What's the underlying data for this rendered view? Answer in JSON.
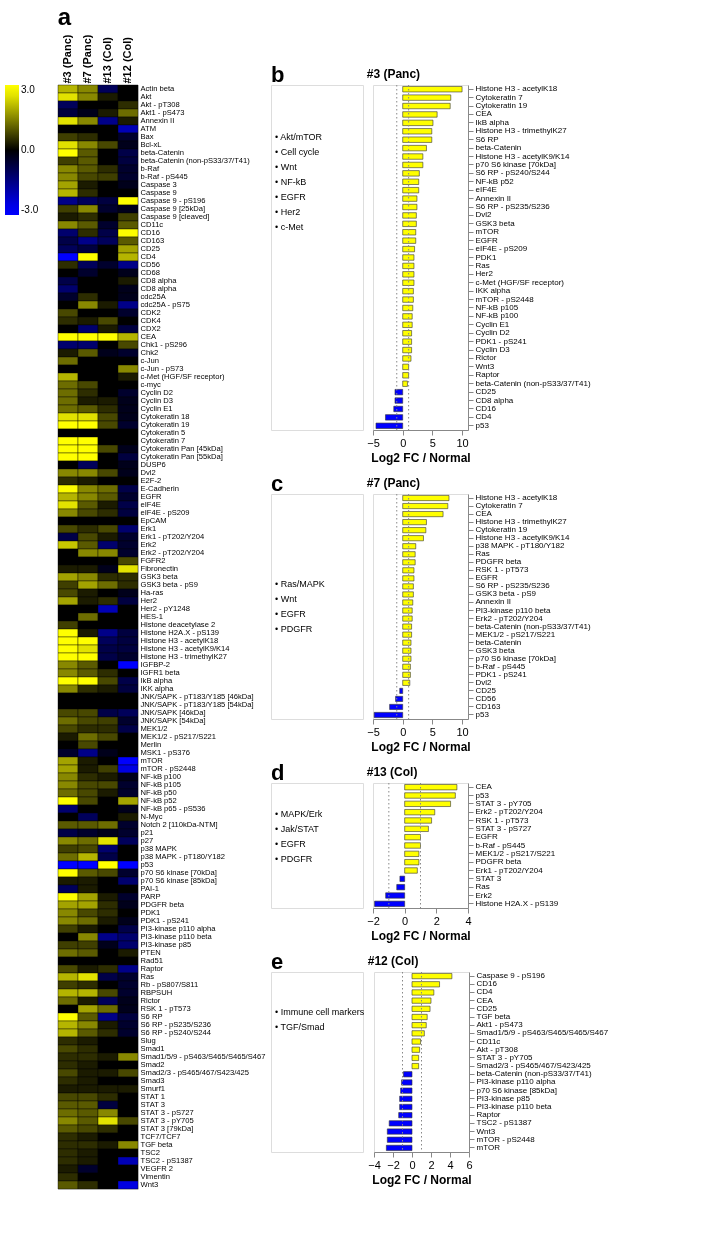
{
  "chart_data": [
    {
      "type": "heatmap",
      "annotations": [
        "a"
      ],
      "categories": [
        "#3 (Panc)",
        "#7 (Panc)",
        "#13 (Col)",
        "#12 (Col)"
      ],
      "y_categories": [
        "Actin beta",
        "Akt",
        "Akt - pT308",
        "Akt1 - pS473",
        "Annexin II",
        "ATM",
        "Bax",
        "Bcl-xL",
        "beta-Catenin",
        "beta-Catenin (non-pS33/37/T41)",
        "b-Raf",
        "b-Raf - pS445",
        "Caspase 3",
        "Caspase 9",
        "Caspase 9 - pS196",
        "Caspase 9 [25kDa]",
        "Caspase 9 [cleaved]",
        "CD11c",
        "CD16",
        "CD163",
        "CD25",
        "CD4",
        "CD56",
        "CD68",
        "CD8 alpha",
        "CD8 alpha",
        "cdc25A",
        "cdc25A - pS75",
        "CDK2",
        "CDK4",
        "CDX2",
        "CEA",
        "Chk1 - pS296",
        "Chk2",
        "c-Jun",
        "c-Jun - pS73",
        "c-Met (HGF/SF receptor)",
        "c-myc",
        "Cyclin D2",
        "Cyclin D3",
        "Cyclin E1",
        "Cytokeratin 18",
        "Cytokeratin 19",
        "Cytokeratin 5",
        "Cytokeratin 7",
        "Cytokeratin Pan [45kDa]",
        "Cytokeratin Pan [55kDa]",
        "DUSP6",
        "Dvl2",
        "E2F-2",
        "E-Cadherin",
        "EGFR",
        "eIF4E",
        "eIF4E - pS209",
        "EpCAM",
        "Erk1",
        "Erk1 - pT202/Y204",
        "Erk2",
        "Erk2 - pT202/Y204",
        "FGFR2",
        "Fibronectin",
        "GSK3 beta",
        "GSK3 beta - pS9",
        "Ha-ras",
        "Her2",
        "Her2 - pY1248",
        "HES-1",
        "Histone deacetylase 2",
        "Histone H2A.X - pS139",
        "Histone H3 - acetylK18",
        "Histone H3 - acetylK9/K14",
        "Histone H3 - trimethylK27",
        "IGFBP-2",
        "IGFR1 beta",
        "IkB alpha",
        "IKK alpha",
        "JNK/SAPK - pT183/Y185 [46kDa]",
        "JNK/SAPK - pT183/Y185 [54kDa]",
        "JNK/SAPK [46kDa]",
        "JNK/SAPK [54kDa]",
        "MEK1/2",
        "MEK1/2 - pS217/S221",
        "Merlin",
        "MSK1 - pS376",
        "mTOR",
        "mTOR - pS2448",
        "NF-kB p100",
        "NF-kB p105",
        "NF-kB p50",
        "NF-kB p52",
        "NF-kB p65 - pS536",
        "N-Myc",
        "Notch 2 [110kDa-NTM]",
        "p21",
        "p27",
        "p38 MAPK",
        "p38 MAPK - pT180/Y182",
        "p53",
        "p70 S6 kinase [70kDa]",
        "p70 S6 kinase [85kDa]",
        "PAI-1",
        "PARP",
        "PDGFR beta",
        "PDK1",
        "PDK1 - pS241",
        "PI3-kinase p110 alpha",
        "PI3-kinase p110 beta",
        "PI3-kinase p85",
        "PTEN",
        "Rad51",
        "Raptor",
        "Ras",
        "Rb - pS807/S811",
        "RBPSUH",
        "Rictor",
        "RSK 1 - pT573",
        "S6 RP",
        "S6 RP - pS235/S236",
        "S6 RP - pS240/S244",
        "Slug",
        "Smad1",
        "Smad1/5/9 - pS463/S465/S465/S467",
        "Smad2",
        "Smad2/3 - pS465/467/S423/425",
        "Smad3",
        "Smurf1",
        "STAT 1",
        "STAT 3",
        "STAT 3 - pS727",
        "STAT 3 - pY705",
        "STAT 3 [79kDa]",
        "TCF7/TCF7",
        "TGF beta",
        "TSC2",
        "TSC2 - pS1387",
        "VEGFR 2",
        "Vimentin",
        "Wnt3"
      ],
      "cells": [
        [
          2,
          1.5,
          -1,
          0
        ],
        [
          2.5,
          1.5,
          0.3,
          0
        ],
        [
          -1,
          0,
          0,
          0.5
        ],
        [
          -0.7,
          -0.3,
          0.3,
          1.2
        ],
        [
          2.5,
          1.5,
          -1.5,
          0.3
        ],
        [
          0,
          0,
          0,
          -2
        ],
        [
          0.7,
          0.5,
          0,
          -0.5
        ],
        [
          2.5,
          1.5,
          0.8,
          -0.3
        ],
        [
          3,
          1,
          0,
          -0.8
        ],
        [
          0.7,
          1,
          0,
          -0.7
        ],
        [
          1.5,
          1,
          0.5,
          -0.5
        ],
        [
          1.5,
          0.8,
          0.7,
          -0.5
        ],
        [
          1.8,
          0.3,
          0,
          -0.3
        ],
        [
          2,
          0.5,
          0,
          0
        ],
        [
          -1.5,
          -1,
          -0.7,
          3
        ],
        [
          0.7,
          1.5,
          -0.5,
          -0.3
        ],
        [
          0.3,
          0.5,
          0,
          0.7
        ],
        [
          1.5,
          1,
          -0.5,
          1
        ],
        [
          -1.2,
          0.5,
          -0.8,
          2.8
        ],
        [
          -0.8,
          -1.5,
          -1,
          1
        ],
        [
          -1,
          -0.7,
          0,
          1.8
        ],
        [
          -3,
          3,
          0,
          2
        ],
        [
          0.5,
          -1,
          -0.5,
          -1.5
        ],
        [
          0,
          -0.5,
          0,
          -0.3
        ],
        [
          -0.8,
          0,
          0,
          0.3
        ],
        [
          -1.2,
          0,
          0,
          -0.3
        ],
        [
          -0.5,
          0.5,
          0,
          -0.3
        ],
        [
          0,
          1.5,
          0.3,
          -1.5
        ],
        [
          0.8,
          0,
          0,
          -0.5
        ],
        [
          0.5,
          0.3,
          0.8,
          0
        ],
        [
          0,
          -1.2,
          0.3,
          -0.7
        ],
        [
          3,
          3,
          3,
          2
        ],
        [
          -1.2,
          -1.2,
          0,
          0.8
        ],
        [
          0.3,
          1,
          -0.3,
          -0.5
        ],
        [
          1.2,
          0,
          0,
          0
        ],
        [
          0,
          0,
          0,
          1.5
        ],
        [
          2,
          0,
          0,
          0.3
        ],
        [
          1.2,
          0.8,
          0,
          0
        ],
        [
          1.2,
          0.5,
          0,
          -0.5
        ],
        [
          1.2,
          0.3,
          0.3,
          -0.3
        ],
        [
          1.2,
          1,
          0.5,
          -0.3
        ],
        [
          2.5,
          2.5,
          0.8,
          -0.3
        ],
        [
          3,
          3,
          0.8,
          -0.5
        ],
        [
          0,
          0,
          0,
          0
        ],
        [
          3,
          3,
          0,
          0
        ],
        [
          3,
          3,
          0.8,
          -0.3
        ],
        [
          3,
          3,
          0,
          -0.7
        ],
        [
          0,
          -1,
          0,
          -0.3
        ],
        [
          1.5,
          1.5,
          0.8,
          -0.3
        ],
        [
          0.5,
          0.3,
          0,
          0
        ],
        [
          2.8,
          1.5,
          1.2,
          -0.8
        ],
        [
          2,
          1.5,
          1,
          -0.5
        ],
        [
          2.5,
          1,
          0.3,
          -0.8
        ],
        [
          1.5,
          0.8,
          0.5,
          -0.7
        ],
        [
          0,
          0,
          0,
          0
        ],
        [
          0.8,
          0.5,
          0.8,
          -1.2
        ],
        [
          -0.8,
          0.8,
          0.3,
          -0.5
        ],
        [
          2.2,
          1,
          -1.2,
          -0.5
        ],
        [
          0,
          1.5,
          1.5,
          -0.5
        ],
        [
          0,
          0,
          0,
          0.8
        ],
        [
          0.3,
          0.3,
          -0.3,
          2.5
        ],
        [
          1.8,
          1.5,
          0.5,
          0.5
        ],
        [
          0.7,
          1.8,
          1.2,
          0.5
        ],
        [
          0.8,
          0.3,
          0,
          -0.3
        ],
        [
          1.8,
          0.3,
          0.5,
          -0.7
        ],
        [
          0,
          0,
          -2,
          0
        ],
        [
          0,
          1.2,
          0,
          0
        ],
        [
          0.7,
          0,
          0,
          0
        ],
        [
          3,
          0.3,
          -1.5,
          -0.7
        ],
        [
          3,
          3,
          -1,
          -0.7
        ],
        [
          3,
          2.5,
          -0.8,
          -0.7
        ],
        [
          3,
          3,
          -0.8,
          -0.5
        ],
        [
          1.5,
          1,
          0,
          -2.8
        ],
        [
          1.5,
          1,
          0.5,
          0
        ],
        [
          3,
          3,
          0.8,
          -0.8
        ],
        [
          1.5,
          0.5,
          0.3,
          -0.7
        ],
        [
          0,
          0,
          0,
          0
        ],
        [
          0,
          0,
          0,
          0
        ],
        [
          0.8,
          0.8,
          -0.8,
          -1
        ],
        [
          1.2,
          0.8,
          0.7,
          -0.5
        ],
        [
          0.8,
          0.5,
          0.5,
          -0.8
        ],
        [
          0.3,
          1.2,
          0.8,
          0
        ],
        [
          0,
          0.8,
          0,
          0
        ],
        [
          -0.5,
          -1.5,
          -0.3,
          0
        ],
        [
          1.8,
          0.3,
          0,
          -2.8
        ],
        [
          1.8,
          0.3,
          0.7,
          -2.5
        ],
        [
          1.5,
          0.5,
          0.3,
          -0.3
        ],
        [
          1.5,
          0.8,
          0.8,
          -0.5
        ],
        [
          1.2,
          0.8,
          0.3,
          -0.5
        ],
        [
          3,
          0.8,
          0,
          1.8
        ],
        [
          -1.2,
          0,
          0,
          -0.3
        ],
        [
          0,
          -1,
          0,
          0.3
        ],
        [
          1,
          1,
          1.2,
          -0.5
        ],
        [
          -0.8,
          -0.5,
          -0.3,
          -0.5
        ],
        [
          1.5,
          1.2,
          2.5,
          -1
        ],
        [
          0.7,
          0.8,
          -1.2,
          0
        ],
        [
          1.2,
          2,
          -0.8,
          0
        ],
        [
          -3,
          -3,
          3,
          -3
        ],
        [
          3,
          1,
          0.8,
          -0.5
        ],
        [
          0.3,
          0.3,
          0,
          -1.2
        ],
        [
          -1,
          0.3,
          0,
          0
        ],
        [
          3,
          1.8,
          0.3,
          -0.5
        ],
        [
          1.8,
          1.8,
          0.5,
          -0.3
        ],
        [
          1.5,
          0.8,
          0.5,
          0
        ],
        [
          1.5,
          1.2,
          0.3,
          -0.3
        ],
        [
          0.7,
          0.3,
          0,
          -0.8
        ],
        [
          0,
          1.5,
          -1.5,
          -1.2
        ],
        [
          0.7,
          0.7,
          -0.3,
          -1.2
        ],
        [
          1.2,
          1,
          0,
          0.3
        ],
        [
          0,
          0,
          0,
          0
        ],
        [
          0.8,
          0.3,
          0.5,
          -1.5
        ],
        [
          2,
          2.5,
          -0.8,
          -0.5
        ],
        [
          0.7,
          0.5,
          0,
          -0.5
        ],
        [
          2,
          2,
          0.8,
          -0.5
        ],
        [
          1.2,
          0.3,
          -1,
          -0.3
        ],
        [
          0,
          1.8,
          1.2,
          -0.3
        ],
        [
          3,
          1,
          -1.5,
          -0.7
        ],
        [
          2,
          1.5,
          0.3,
          -0.5
        ],
        [
          2,
          1,
          0.5,
          -0.5
        ],
        [
          0.5,
          0.3,
          0,
          0
        ],
        [
          0.8,
          0.5,
          0,
          0
        ],
        [
          0.5,
          0.5,
          0.3,
          1.5
        ],
        [
          0.5,
          0.3,
          0,
          0
        ],
        [
          0.8,
          0.3,
          0.3,
          0.8
        ],
        [
          0.5,
          0.3,
          0,
          0
        ],
        [
          0.3,
          0.3,
          0.3,
          0.3
        ],
        [
          0.8,
          0.8,
          0.5,
          0
        ],
        [
          1,
          1,
          -0.7,
          0
        ],
        [
          1.2,
          1,
          1.5,
          0
        ],
        [
          1.5,
          1,
          2.5,
          0.8
        ],
        [
          1,
          0.8,
          0.5,
          0
        ],
        [
          0.5,
          0.3,
          0,
          0
        ],
        [
          0.5,
          0.5,
          0.3,
          1.5
        ],
        [
          0.5,
          0.3,
          0,
          0
        ],
        [
          0.5,
          0.3,
          0,
          -2
        ],
        [
          0.3,
          -0.5,
          0,
          0
        ],
        [
          0.5,
          0,
          0,
          0
        ],
        [
          1,
          0.5,
          0,
          -2.5
        ]
      ],
      "colors": [
        "#0000ff",
        "#000000",
        "#ffff00"
      ],
      "clim": [
        -3,
        3
      ],
      "cticks": [
        {
          "value": 3,
          "label": "3.0"
        },
        {
          "value": 0,
          "label": "0.0"
        },
        {
          "value": -3,
          "label": "-3.0"
        }
      ]
    },
    {
      "type": "bar",
      "orientation": "horizontal",
      "title": "#3 (Panc)",
      "xlabel": "Log2 FC / Normal",
      "annotations": [
        "b",
        "• Akt/mTOR",
        "• Cell cycle",
        "• Wnt",
        "• NF-kB",
        "• EGFR",
        "• Her2",
        "• c-Met"
      ],
      "categories": [
        "Histone H3 - acetylK18",
        "Cytokeratin 7",
        "Cytokeratin 19",
        "CEA",
        "IkB alpha",
        "Histone H3 - trimethylK27",
        "S6 RP",
        "beta-Catenin",
        "Histone H3 - acetylK9/K14",
        "p70 S6 kinase [70kDa]",
        "S6 RP - pS240/S244",
        "NF-kB p52",
        "eIF4E",
        "Annexin II",
        "S6 RP - pS235/S236",
        "Dvl2",
        "GSK3 beta",
        "mTOR",
        "EGFR",
        "eIF4E - pS209",
        "PDK1",
        "Ras",
        "Her2",
        "c-Met (HGF/SF receptor)",
        "IKK alpha",
        "mTOR - pS2448",
        "NF-kB p105",
        "NF-kB p100",
        "Cyclin E1",
        "Cyclin D2",
        "PDK1 - pS241",
        "Cyclin D3",
        "Rictor",
        "Wnt3",
        "Raptor",
        "beta-Catenin (non-pS33/37/T41)",
        "CD25",
        "CD8 alpha",
        "CD16",
        "CD4",
        "p53"
      ],
      "values": [
        10,
        8.1,
        8.0,
        5.8,
        5.1,
        4.9,
        4.9,
        4.0,
        3.4,
        3.4,
        2.8,
        2.7,
        2.7,
        2.4,
        2.4,
        2.3,
        2.3,
        2.2,
        2.2,
        2.0,
        1.9,
        1.9,
        1.9,
        1.9,
        1.8,
        1.8,
        1.7,
        1.6,
        1.6,
        1.5,
        1.5,
        1.5,
        1.4,
        1.0,
        1.0,
        0.8,
        -1.3,
        -1.3,
        -1.5,
        -2.9,
        -4.5
      ],
      "colors": [
        "#ffff00",
        "#ffff00",
        "#ffff00",
        "#ffff00",
        "#ffff00",
        "#ffff00",
        "#ffff00",
        "#ffff00",
        "#ffff00",
        "#ffff00",
        "#ffff00",
        "#ffff00",
        "#ffff00",
        "#ffff00",
        "#ffff00",
        "#ffff00",
        "#ffff00",
        "#ffff00",
        "#ffff00",
        "#ffff00",
        "#ffff00",
        "#ffff00",
        "#ffff00",
        "#ffff00",
        "#ffff00",
        "#ffff00",
        "#ffff00",
        "#ffff00",
        "#ffff00",
        "#ffff00",
        "#ffff00",
        "#ffff00",
        "#ffff00",
        "#ffff00",
        "#ffff00",
        "#ffff00",
        "#0000ff",
        "#0000ff",
        "#0000ff",
        "#0000ff",
        "#0000ff"
      ],
      "xlim": [
        -5,
        11
      ],
      "xticks": [
        -5,
        0,
        5,
        10
      ],
      "ref_lines": [
        {
          "axis": "x",
          "value": -1,
          "color": "#888888",
          "line_style": "dotted"
        },
        {
          "axis": "x",
          "value": 1,
          "color": "#888888",
          "line_style": "dotted"
        }
      ]
    },
    {
      "type": "bar",
      "orientation": "horizontal",
      "title": "#7 (Panc)",
      "xlabel": "Log2 FC / Normal",
      "annotations": [
        "c",
        "• Ras/MAPK",
        "• Wnt",
        "• EGFR",
        "• PDGFR"
      ],
      "categories": [
        "Histone H3 - acetylK18",
        "Cytokeratin 7",
        "CEA",
        "Histone H3 - trimethylK27",
        "Cytokeratin 19",
        "Histone H3 - acetylK9/K14",
        "p38 MAPK - pT180/Y182",
        "Ras",
        "PDGFR beta",
        "RSK 1 - pT573",
        "EGFR",
        "S6 RP - pS235/S236",
        "GSK3 beta - pS9",
        "Annexin II",
        "PI3-kinase p110 beta",
        "Erk2 - pT202/Y204",
        "beta-Catenin (non-pS33/37/T41)",
        "MEK1/2 - pS217/S221",
        "beta-Catenin",
        "GSK3 beta",
        "p70 S6 kinase [70kDa]",
        "b-Raf - pS445",
        "PDK1 - pS241",
        "Dvl2",
        "CD25",
        "CD56",
        "CD163",
        "p53"
      ],
      "values": [
        7.8,
        7.6,
        6.8,
        4.0,
        3.9,
        3.5,
        2.2,
        2.1,
        2.1,
        1.9,
        1.9,
        1.8,
        1.8,
        1.7,
        1.6,
        1.6,
        1.5,
        1.5,
        1.4,
        1.4,
        1.4,
        1.3,
        1.3,
        1.2,
        -0.5,
        -1.2,
        -2.2,
        -4.8
      ],
      "colors": [
        "#ffff00",
        "#ffff00",
        "#ffff00",
        "#ffff00",
        "#ffff00",
        "#ffff00",
        "#ffff00",
        "#ffff00",
        "#ffff00",
        "#ffff00",
        "#ffff00",
        "#ffff00",
        "#ffff00",
        "#ffff00",
        "#ffff00",
        "#ffff00",
        "#ffff00",
        "#ffff00",
        "#ffff00",
        "#ffff00",
        "#ffff00",
        "#ffff00",
        "#ffff00",
        "#ffff00",
        "#0000ff",
        "#0000ff",
        "#0000ff",
        "#0000ff"
      ],
      "xlim": [
        -5,
        11
      ],
      "xticks": [
        -5,
        0,
        5,
        10
      ],
      "ref_lines": [
        {
          "axis": "x",
          "value": -1,
          "color": "#888888",
          "line_style": "dotted"
        },
        {
          "axis": "x",
          "value": 1,
          "color": "#888888",
          "line_style": "dotted"
        }
      ]
    },
    {
      "type": "bar",
      "orientation": "horizontal",
      "title": "#13 (Col)",
      "xlabel": "Log2 FC / Normal",
      "annotations": [
        "d",
        "• MAPK/Erk",
        "• Jak/STAT",
        "• EGFR",
        "• PDGFR"
      ],
      "categories": [
        "CEA",
        "p53",
        "STAT 3 - pY705",
        "Erk2 - pT202/Y204",
        "RSK 1 - pT573",
        "STAT 3 - pS727",
        "EGFR",
        "b-Raf - pS445",
        "MEK1/2 - pS217/S221",
        "PDGFR beta",
        "Erk1 - pT202/Y204",
        "STAT 3",
        "Ras",
        "Erk2",
        "Histone H2A.X - pS139"
      ],
      "values": [
        3.3,
        3.2,
        2.9,
        1.9,
        1.7,
        1.5,
        1.0,
        1.0,
        0.9,
        0.9,
        0.8,
        -0.3,
        -0.5,
        -1.2,
        -1.9
      ],
      "colors": [
        "#ffff00",
        "#ffff00",
        "#ffff00",
        "#ffff00",
        "#ffff00",
        "#ffff00",
        "#ffff00",
        "#ffff00",
        "#ffff00",
        "#ffff00",
        "#ffff00",
        "#0000ff",
        "#0000ff",
        "#0000ff",
        "#0000ff"
      ],
      "xlim": [
        -2,
        4
      ],
      "xticks": [
        -2,
        0,
        2,
        4
      ],
      "ref_lines": [
        {
          "axis": "x",
          "value": -1,
          "color": "#888888",
          "line_style": "dotted"
        },
        {
          "axis": "x",
          "value": 1,
          "color": "#888888",
          "line_style": "dotted"
        }
      ]
    },
    {
      "type": "bar",
      "orientation": "horizontal",
      "title": "#12 (Col)",
      "xlabel": "Log2 FC / Normal",
      "annotations": [
        "e",
        "• Immune cell markers",
        "• TGF/Smad"
      ],
      "categories": [
        "Caspase 9 - pS196",
        "CD16",
        "CD4",
        "CEA",
        "CD25",
        "TGF beta",
        "Akt1 - pS473",
        "Smad1/5/9 - pS463/S465/S465/S467",
        "CD11c",
        "Akt - pT308",
        "STAT 3 - pY705",
        "Smad2/3 - pS465/467/S423/425",
        "beta-Catenin (non-pS33/37/T41)",
        "PI3-kinase p110 alpha",
        "p70 S6 kinase [85kDa]",
        "PI3-kinase p85",
        "PI3-kinase p110 beta",
        "Raptor",
        "TSC2 - pS1387",
        "Wnt3",
        "mTOR - pS2448",
        "mTOR"
      ],
      "values": [
        4.2,
        2.9,
        2.3,
        2.0,
        1.9,
        1.6,
        1.5,
        1.3,
        0.9,
        0.8,
        0.7,
        0.7,
        -0.9,
        -1.1,
        -1.2,
        -1.3,
        -1.3,
        -1.4,
        -2.4,
        -2.6,
        -2.6,
        -2.7
      ],
      "colors": [
        "#ffff00",
        "#ffff00",
        "#ffff00",
        "#ffff00",
        "#ffff00",
        "#ffff00",
        "#ffff00",
        "#ffff00",
        "#ffff00",
        "#ffff00",
        "#ffff00",
        "#ffff00",
        "#0000ff",
        "#0000ff",
        "#0000ff",
        "#0000ff",
        "#0000ff",
        "#0000ff",
        "#0000ff",
        "#0000ff",
        "#0000ff",
        "#0000ff"
      ],
      "xlim": [
        -4,
        6
      ],
      "xticks": [
        -4,
        -2,
        0,
        2,
        4,
        6
      ],
      "ref_lines": [
        {
          "axis": "x",
          "value": -1,
          "color": "#888888",
          "line_style": "dotted"
        },
        {
          "axis": "x",
          "value": 1,
          "color": "#888888",
          "line_style": "dotted"
        }
      ]
    }
  ]
}
